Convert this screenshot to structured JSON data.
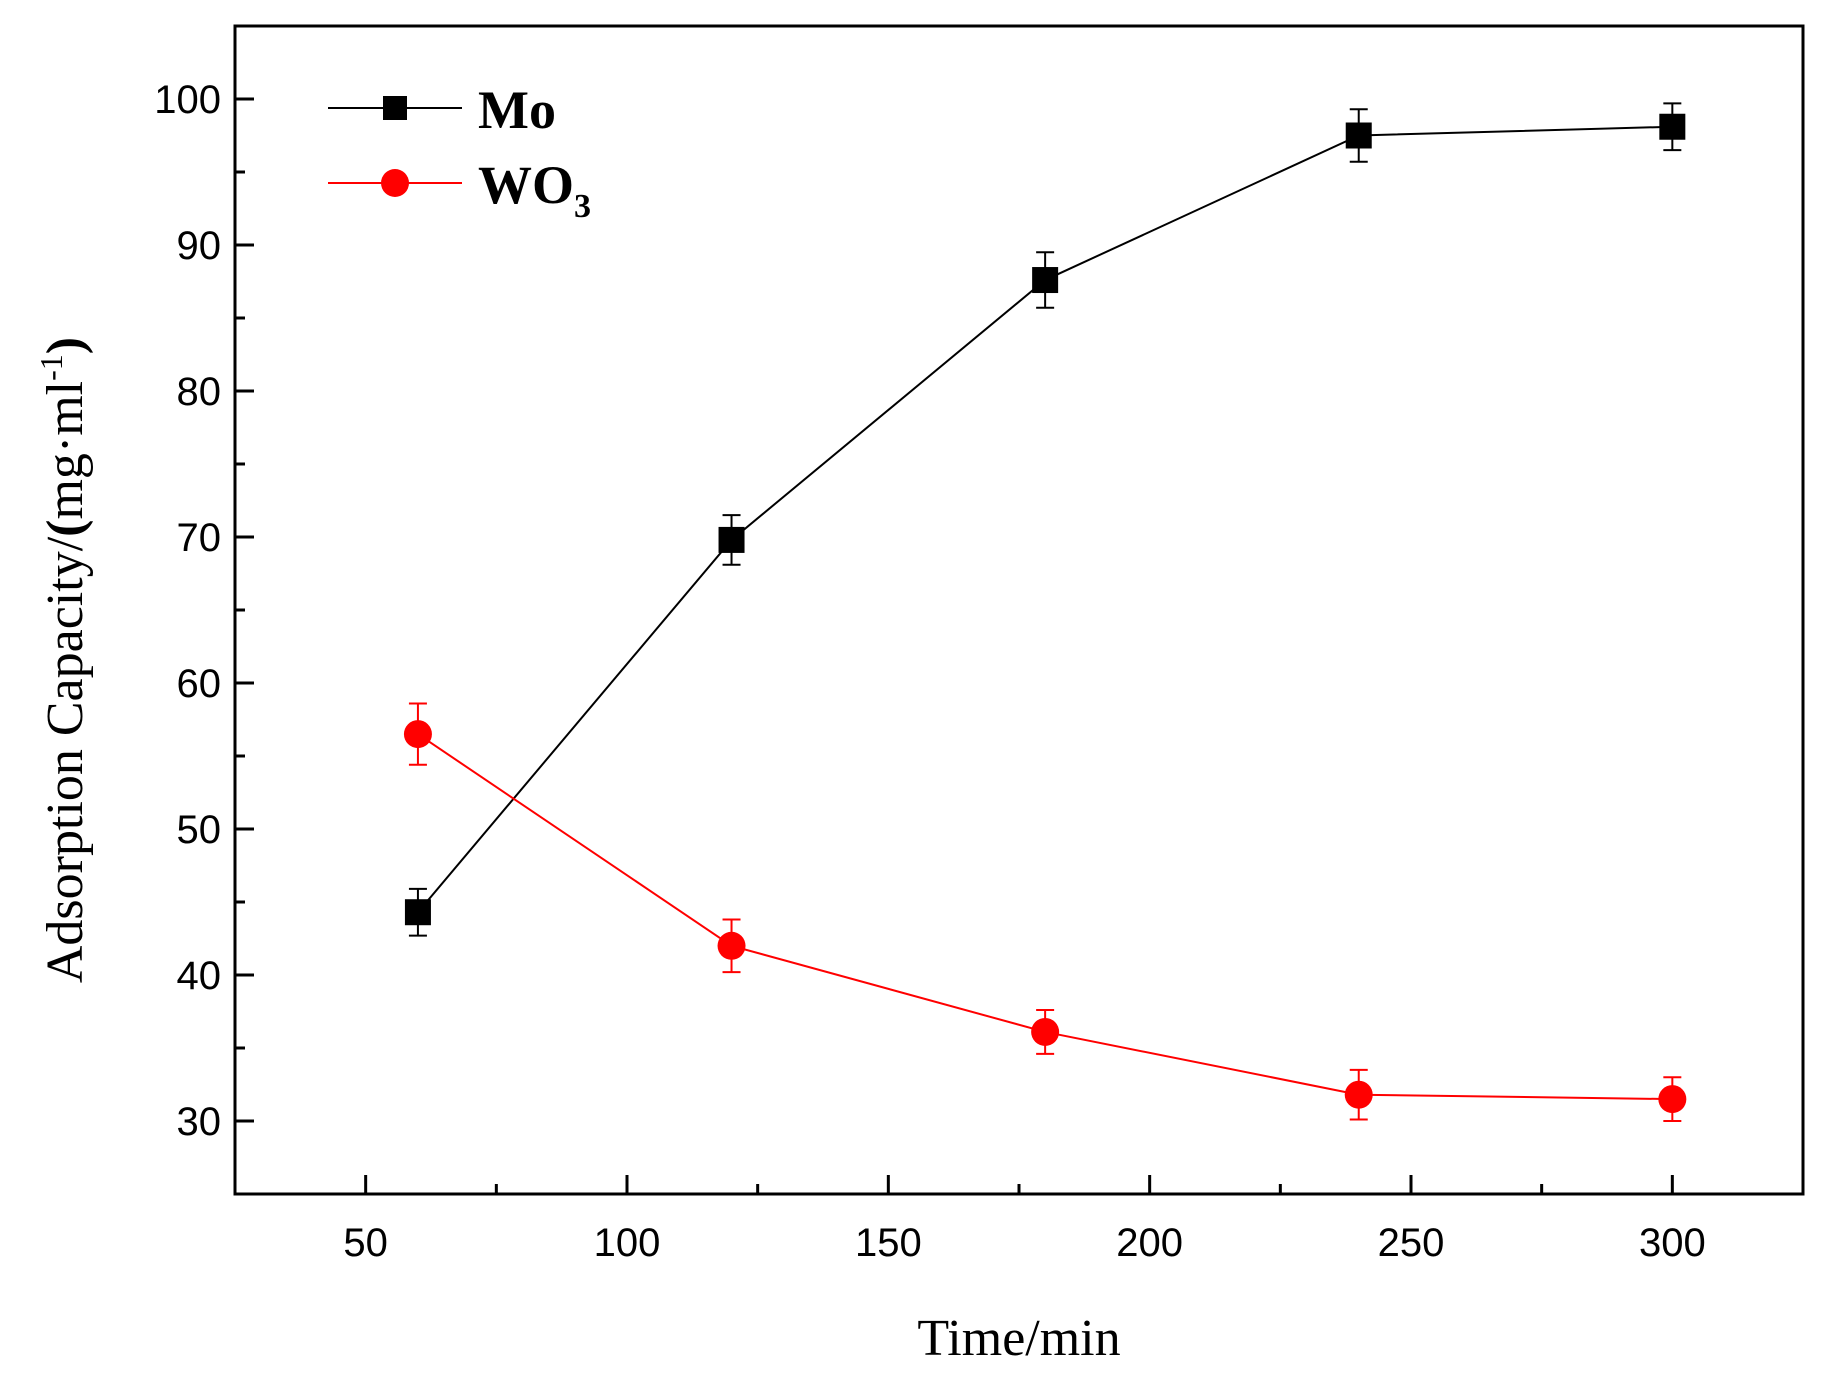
{
  "chart_data": {
    "type": "line",
    "title": "",
    "xlabel": "Time/min",
    "ylabel_main": "Adsorption Capacity/",
    "ylabel_unit_open": "(",
    "ylabel_unit_body": "mg·ml",
    "ylabel_unit_sup": "-1",
    "ylabel_unit_close": ")",
    "xlim": [
      25,
      325
    ],
    "ylim": [
      25,
      105
    ],
    "xticks": [
      50,
      100,
      150,
      200,
      250,
      300
    ],
    "xtick_labels": [
      "50",
      "100",
      "150",
      "200",
      "250",
      "300"
    ],
    "xminor": [
      75,
      125,
      175,
      225,
      275
    ],
    "yticks": [
      30,
      40,
      50,
      60,
      70,
      80,
      90,
      100
    ],
    "ytick_labels": [
      "30",
      "40",
      "50",
      "60",
      "70",
      "80",
      "90",
      "100"
    ],
    "yminor": [
      35,
      45,
      55,
      65,
      75,
      85,
      95
    ],
    "legend_position": "top-left",
    "series": [
      {
        "name": "Mo",
        "legend_main": "Mo",
        "legend_sub": "",
        "marker": "square",
        "color": "#000000",
        "x": [
          60,
          120,
          180,
          240,
          300
        ],
        "y": [
          44.3,
          69.8,
          87.6,
          97.5,
          98.1
        ],
        "err": [
          1.6,
          1.7,
          1.9,
          1.8,
          1.6
        ]
      },
      {
        "name": "WO3",
        "legend_main": "WO",
        "legend_sub": "3",
        "marker": "circle",
        "color": "#ff0000",
        "x": [
          60,
          120,
          180,
          240,
          300
        ],
        "y": [
          56.5,
          42.0,
          36.1,
          31.8,
          31.5
        ],
        "err": [
          2.1,
          1.8,
          1.5,
          1.7,
          1.5
        ]
      }
    ]
  }
}
